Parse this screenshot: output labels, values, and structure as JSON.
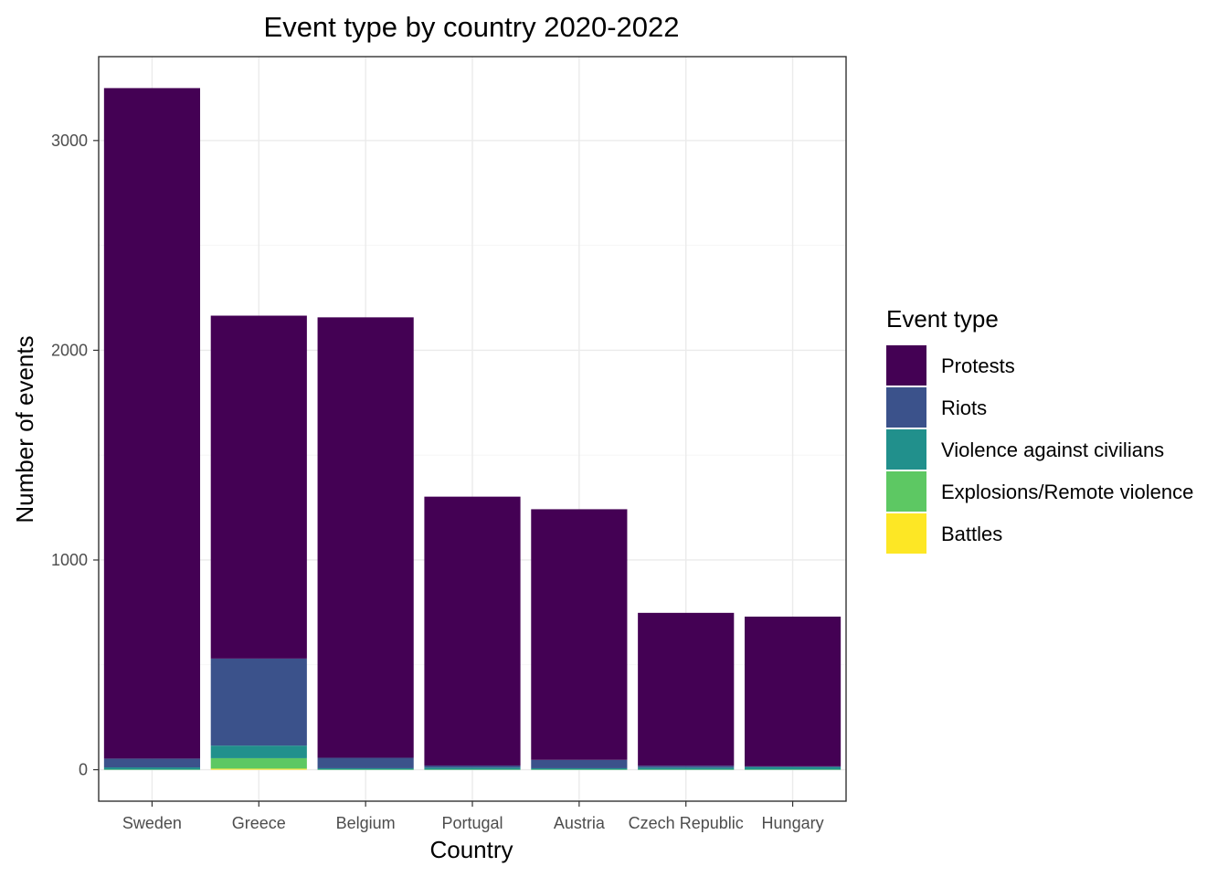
{
  "chart_data": {
    "type": "bar",
    "stacked": true,
    "title": "Event type by country 2020-2022",
    "xlabel": "Country",
    "ylabel": "Number of events",
    "categories": [
      "Sweden",
      "Greece",
      "Belgium",
      "Portugal",
      "Austria",
      "Czech Republic",
      "Hungary"
    ],
    "ylim": [
      -150,
      3400
    ],
    "yticks": [
      0,
      1000,
      2000,
      3000
    ],
    "grid": true,
    "legend": {
      "title": "Event type",
      "position": "right"
    },
    "series": [
      {
        "name": "Battles",
        "color": "#FDE725",
        "values": [
          0,
          5,
          0,
          0,
          0,
          0,
          0
        ]
      },
      {
        "name": "Explosions/Remote violence",
        "color": "#5DC863",
        "values": [
          1,
          50,
          1,
          1,
          1,
          1,
          1
        ]
      },
      {
        "name": "Violence against civilians",
        "color": "#21908C",
        "values": [
          10,
          60,
          6,
          9,
          6,
          9,
          12
        ]
      },
      {
        "name": "Riots",
        "color": "#3B528B",
        "values": [
          42,
          415,
          50,
          10,
          40,
          9,
          3
        ]
      },
      {
        "name": "Protests",
        "color": "#440154",
        "values": [
          3197,
          1635,
          2100,
          1282,
          1195,
          729,
          714
        ]
      }
    ]
  }
}
